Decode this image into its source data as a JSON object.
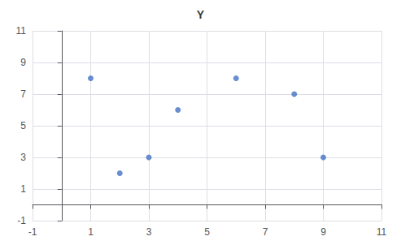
{
  "chart_data": {
    "type": "scatter",
    "title": "Y",
    "x": [
      1,
      2,
      3,
      4,
      6,
      8,
      9
    ],
    "values": [
      8,
      2,
      3,
      6,
      8,
      7,
      3
    ],
    "color": "#4472C4",
    "xlim": [
      -1,
      11
    ],
    "ylim": [
      -1,
      11
    ],
    "xticks": [
      -1,
      1,
      3,
      5,
      7,
      9,
      11
    ],
    "yticks": [
      -1,
      1,
      3,
      5,
      7,
      9,
      11
    ],
    "grid": true
  }
}
